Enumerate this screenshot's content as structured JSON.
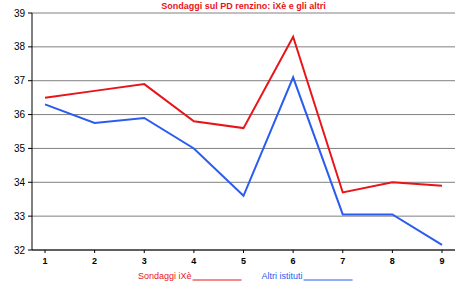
{
  "chart_data": {
    "type": "line",
    "title": "Sondaggi sul PD renzino: iXè e gli altri",
    "categories": [
      "1",
      "2",
      "3",
      "4",
      "5",
      "6",
      "7",
      "8",
      "9"
    ],
    "series": [
      {
        "name": "Sondaggi iXè",
        "color": "#e8141a",
        "values": [
          36.5,
          36.7,
          36.9,
          35.8,
          35.6,
          38.3,
          33.7,
          34.0,
          33.9
        ]
      },
      {
        "name": "Altri istituti",
        "color": "#2a5cf0",
        "values": [
          36.3,
          35.75,
          35.9,
          35.0,
          33.6,
          37.1,
          33.05,
          33.05,
          32.15
        ]
      }
    ],
    "ylim": [
      32,
      39
    ],
    "yticks": [
      32,
      33,
      34,
      35,
      36,
      37,
      38,
      39
    ],
    "grid": true,
    "legend": "bottom"
  }
}
